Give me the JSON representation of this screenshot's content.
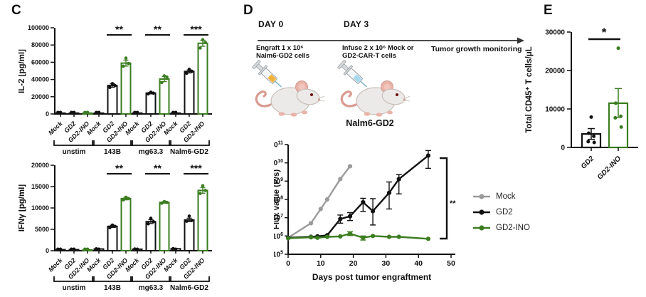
{
  "panel_labels": {
    "c": "C",
    "d": "D",
    "e": "E"
  },
  "colors": {
    "green": "#3b7d20",
    "gray": "#9b9b9b",
    "black": "#111111",
    "arrow": "#333333"
  },
  "panel_d": {
    "day0_label": "DAY 0",
    "day3_label": "DAY 3",
    "engraft_line1": "Engraft 1 x 10⁶",
    "engraft_line2": "Nalm6-GD2 cells",
    "infuse_line1": "Infuse 2 x 10⁶ Mock or",
    "infuse_line2": "GD2-CAR-T cells",
    "monitoring_label": "Tumor growth monitoring",
    "mice": [
      {
        "name": "mouse-day0",
        "syringe_liquid_color": "#f0b43c"
      },
      {
        "name": "mouse-day3",
        "syringe_liquid_color": "#a6d9ec"
      }
    ]
  },
  "chart_data": [
    {
      "id": "c-il2",
      "type": "bar",
      "title": "",
      "ylabel": "IL-2 [pg/ml]",
      "ylim": [
        0,
        100000
      ],
      "yticks": [
        0,
        20000,
        40000,
        60000,
        80000,
        100000
      ],
      "bar_labels": [
        "Mock",
        "GD2",
        "GD2-INO"
      ],
      "groups": [
        {
          "label": "unstim",
          "values": [
            250,
            250,
            250
          ],
          "errors": [
            0,
            0,
            0
          ],
          "dots": [
            [
              200,
              300
            ],
            [
              200,
              300
            ],
            [
              200,
              300
            ]
          ]
        },
        {
          "label": "143B",
          "values": [
            250,
            33000,
            59000
          ],
          "errors": [
            0,
            2000,
            3500
          ],
          "dots": [
            [
              200,
              300
            ],
            [
              35200,
              30800,
              33000
            ],
            [
              64800,
              55400,
              58500
            ]
          ]
        },
        {
          "label": "mg63.3",
          "values": [
            250,
            24200,
            40500
          ],
          "errors": [
            0,
            900,
            3000
          ],
          "dots": [
            [
              200,
              300
            ],
            [
              25300,
              23300,
              24200
            ],
            [
              44200,
              36500,
              42800
            ]
          ]
        },
        {
          "label": "Nalm6-GD2",
          "values": [
            300,
            49300,
            82000
          ],
          "errors": [
            0,
            1700,
            3500
          ],
          "dots": [
            [
              200,
              350
            ],
            [
              51800,
              47200,
              49500
            ],
            [
              86200,
              76500,
              83000
            ]
          ]
        }
      ],
      "sig": [
        {
          "group": "143B",
          "label": "**"
        },
        {
          "group": "mg63.3",
          "label": "**"
        },
        {
          "group": "Nalm6-GD2",
          "label": "***"
        }
      ]
    },
    {
      "id": "c-ifng",
      "type": "bar",
      "title": "",
      "ylabel": "IFNγ [pg/ml]",
      "ylim": [
        0,
        20000
      ],
      "yticks": [
        0,
        5000,
        10000,
        15000,
        20000
      ],
      "bar_labels": [
        "Mock",
        "GD2",
        "GD2-INO"
      ],
      "groups": [
        {
          "label": "unstim",
          "values": [
            250,
            250,
            200
          ],
          "errors": [
            0,
            0,
            0
          ],
          "dots": [
            [
              200,
              300
            ],
            [
              200,
              300
            ],
            [
              150,
              250
            ]
          ]
        },
        {
          "label": "143B",
          "values": [
            400,
            5700,
            12200
          ],
          "errors": [
            0,
            250,
            300
          ],
          "dots": [
            [
              300,
              450
            ],
            [
              6000,
              5400,
              5700
            ],
            [
              12500,
              11900,
              12200
            ]
          ]
        },
        {
          "label": "mg63.3",
          "values": [
            350,
            6800,
            11300
          ],
          "errors": [
            0,
            450,
            180
          ],
          "dots": [
            [
              250,
              400
            ],
            [
              7600,
              6300,
              6800
            ],
            [
              11500,
              11100,
              11300
            ]
          ]
        },
        {
          "label": "Nalm6-GD2",
          "values": [
            450,
            7200,
            14100
          ],
          "errors": [
            0,
            420,
            650
          ],
          "dots": [
            [
              350,
              500
            ],
            [
              8100,
              6900,
              7100
            ],
            [
              15200,
              13400,
              14100
            ]
          ]
        }
      ],
      "sig": [
        {
          "group": "143B",
          "label": "**"
        },
        {
          "group": "mg63.3",
          "label": "**"
        },
        {
          "group": "Nalm6-GD2",
          "label": "***"
        }
      ]
    },
    {
      "id": "d-flux",
      "type": "line",
      "title": "Nalm6-GD2",
      "xlabel": "Days post tumor engraftment",
      "ylabel": "Flux value (P/s)",
      "xlim": [
        0,
        50
      ],
      "xticks": [
        0,
        10,
        20,
        30,
        40,
        50
      ],
      "ylog_exponent_range": [
        5,
        11
      ],
      "sig": "**",
      "series": [
        {
          "name": "Mock",
          "color": "#9b9b9b",
          "x": [
            0,
            7,
            10,
            12,
            16,
            19
          ],
          "y": [
            800000,
            5000000,
            30000000,
            100000000,
            1300000000,
            6500000000
          ],
          "yerr": [
            null,
            null,
            null,
            null,
            null,
            null
          ]
        },
        {
          "name": "GD2",
          "color": "#111111",
          "x": [
            0,
            7,
            9,
            12,
            16,
            19,
            23,
            26,
            31,
            34,
            43
          ],
          "y": [
            800000,
            900000,
            950000,
            1100000,
            8500000,
            12000000,
            70000000,
            23000000,
            230000000,
            1300000000,
            25000000000
          ],
          "yerr": [
            null,
            null,
            null,
            null,
            [
              5000000,
              14000000
            ],
            [
              7000000,
              19000000
            ],
            [
              22000000,
              115000000
            ],
            [
              4000000,
              110000000
            ],
            [
              30000000,
              900000000
            ],
            [
              200000000,
              2300000000
            ],
            [
              5000000000,
              47000000000
            ]
          ]
        },
        {
          "name": "GD2-INO",
          "color": "#3b7d20",
          "x": [
            0,
            7,
            9,
            12,
            16,
            19,
            23,
            26,
            31,
            34,
            43
          ],
          "y": [
            750000,
            850000,
            800000,
            900000,
            950000,
            1350000,
            800000,
            1000000,
            900000,
            900000,
            700000
          ],
          "yerr": [
            null,
            null,
            null,
            null,
            null,
            [
              1050000,
              1700000
            ],
            [
              600000,
              1000000
            ],
            null,
            null,
            null,
            null
          ]
        }
      ],
      "legend": [
        {
          "label": "Mock",
          "color": "#9b9b9b"
        },
        {
          "label": "GD2",
          "color": "#111111"
        },
        {
          "label": "GD2-INO",
          "color": "#3b7d20"
        }
      ]
    },
    {
      "id": "e-cd45",
      "type": "bar",
      "title": "",
      "ylabel": "Total CD45⁺ T cells/μL",
      "ylim": [
        0,
        30000
      ],
      "yticks": [
        0,
        10000,
        20000,
        30000
      ],
      "categories": [
        "GD2",
        "GD2-INO"
      ],
      "values": [
        3500,
        11500
      ],
      "errors_lo_hi": [
        [
          2100,
          4900
        ],
        [
          7800,
          15300
        ]
      ],
      "dots": [
        [
          7900,
          3700,
          2900,
          1500,
          1300
        ],
        [
          25800,
          11500,
          8100,
          7700,
          5300
        ]
      ],
      "bar_colors": [
        "#111111",
        "#3b7d20"
      ],
      "sig": "*"
    }
  ]
}
